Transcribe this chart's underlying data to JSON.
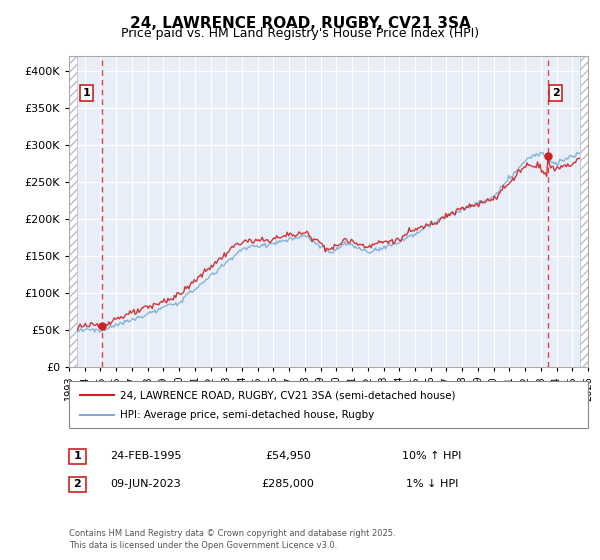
{
  "title": "24, LAWRENCE ROAD, RUGBY, CV21 3SA",
  "subtitle": "Price paid vs. HM Land Registry's House Price Index (HPI)",
  "legend_line1": "24, LAWRENCE ROAD, RUGBY, CV21 3SA (semi-detached house)",
  "legend_line2": "HPI: Average price, semi-detached house, Rugby",
  "annotation1": {
    "num": "1",
    "date": "24-FEB-1995",
    "price": "£54,950",
    "hpi": "10% ↑ HPI"
  },
  "annotation2": {
    "num": "2",
    "date": "09-JUN-2023",
    "price": "£285,000",
    "hpi": "1% ↓ HPI"
  },
  "footer": "Contains HM Land Registry data © Crown copyright and database right 2025.\nThis data is licensed under the Open Government Licence v3.0.",
  "hpi_color": "#7aadd4",
  "price_color": "#cc2222",
  "dashed_line_color": "#dd4444",
  "bg_plot_color": "#e8eef8",
  "ylim": [
    0,
    420000
  ],
  "yticks": [
    0,
    50000,
    100000,
    150000,
    200000,
    250000,
    300000,
    350000,
    400000
  ],
  "point1_x": 1995.13,
  "point1_y": 54950,
  "point2_x": 2023.44,
  "point2_y": 285000,
  "xmin": 1993.0,
  "xmax": 2026.0,
  "data_xmin": 1993.5,
  "data_xmax": 2025.5
}
